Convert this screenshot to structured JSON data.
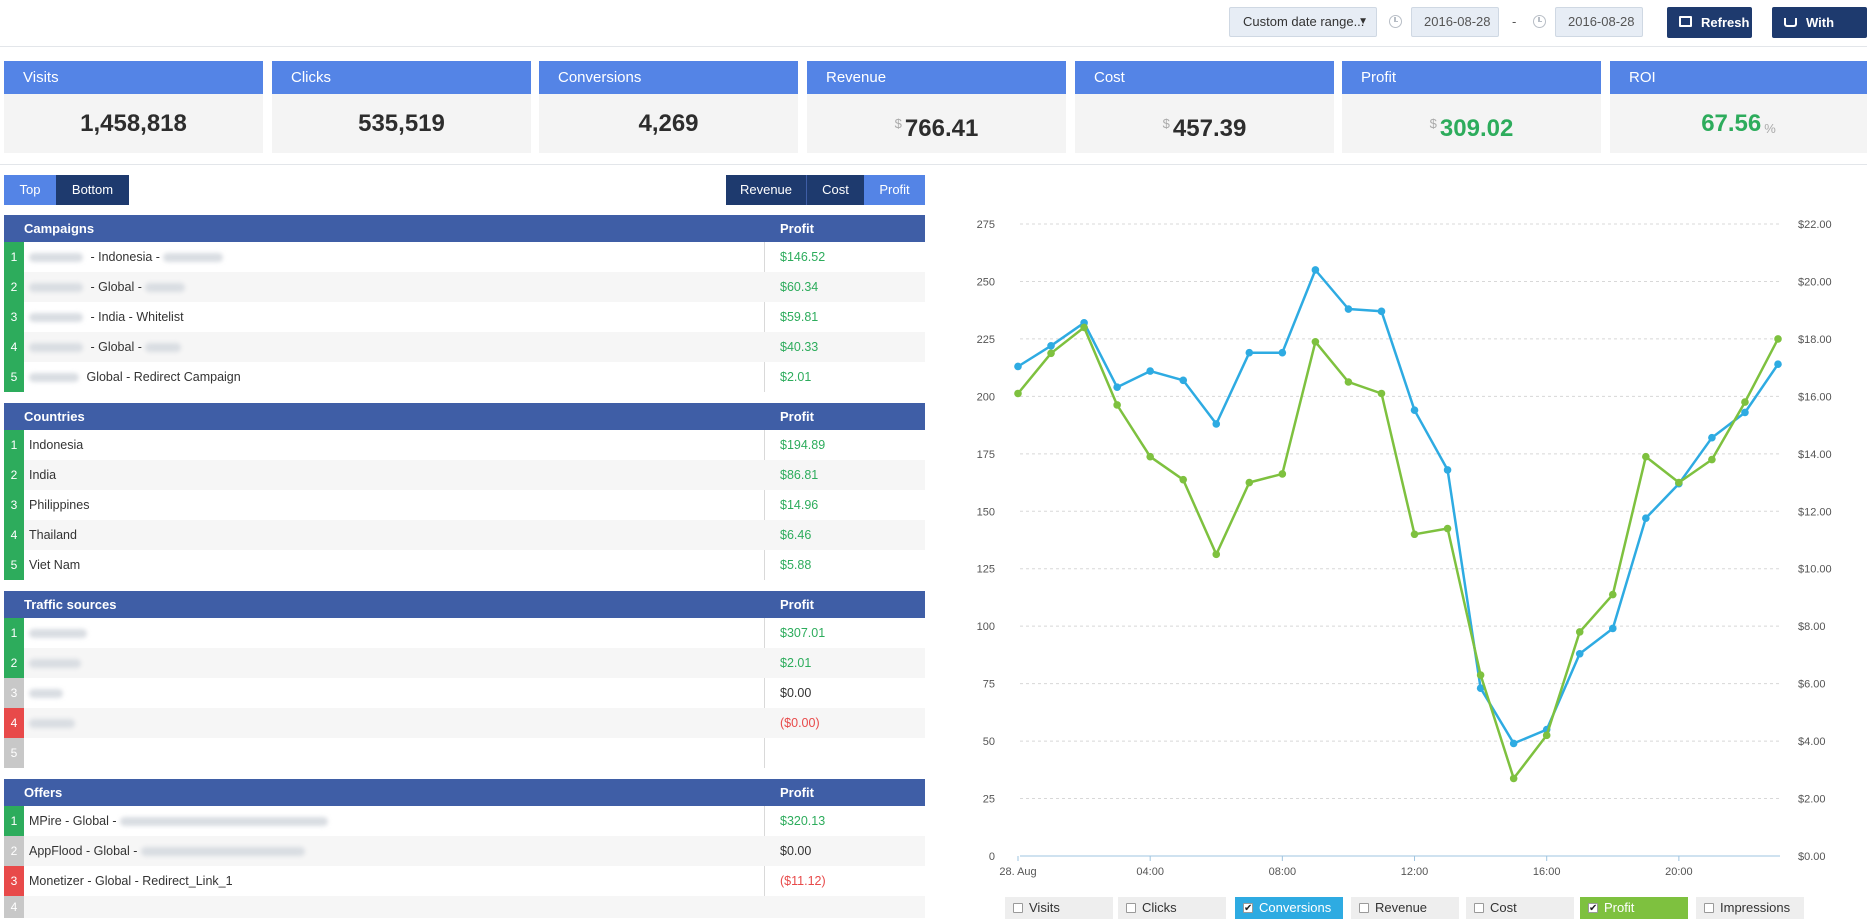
{
  "topbar": {
    "date_range_label": "Custom date range...",
    "date_from": "2016-08-28",
    "date_separator": "-",
    "date_to": "2016-08-28",
    "refresh_label": "Refresh",
    "traffic_label": "With traffic"
  },
  "kpis": [
    {
      "label": "Visits",
      "value": "1,458,818"
    },
    {
      "label": "Clicks",
      "value": "535,519"
    },
    {
      "label": "Conversions",
      "value": "4,269"
    },
    {
      "label": "Revenue",
      "currency": "$",
      "value": "766.41"
    },
    {
      "label": "Cost",
      "currency": "$",
      "value": "457.39"
    },
    {
      "label": "Profit",
      "currency": "$",
      "value": "309.02"
    },
    {
      "label": "ROI",
      "value": "67.56",
      "unit": "%"
    }
  ],
  "toggles": {
    "top": "Top",
    "bottom": "Bottom",
    "revenue": "Revenue",
    "cost": "Cost",
    "profit": "Profit"
  },
  "tables": {
    "campaigns": {
      "title": "Campaigns",
      "col": "Profit",
      "rows": [
        {
          "rank": "1",
          "name": " - Indonesia - ",
          "value": "$146.52"
        },
        {
          "rank": "2",
          "name": " - Global - ",
          "value": "$60.34"
        },
        {
          "rank": "3",
          "name": " - India - Whitelist",
          "value": "$59.81"
        },
        {
          "rank": "4",
          "name": " - Global - ",
          "value": "$40.33"
        },
        {
          "rank": "5",
          "name": " Global - Redirect Campaign",
          "value": "$2.01"
        }
      ]
    },
    "countries": {
      "title": "Countries",
      "col": "Profit",
      "rows": [
        {
          "rank": "1",
          "name": "Indonesia",
          "value": "$194.89"
        },
        {
          "rank": "2",
          "name": "India",
          "value": "$86.81"
        },
        {
          "rank": "3",
          "name": "Philippines",
          "value": "$14.96"
        },
        {
          "rank": "4",
          "name": "Thailand",
          "value": "$6.46"
        },
        {
          "rank": "5",
          "name": "Viet Nam",
          "value": "$5.88"
        }
      ]
    },
    "traffic_sources": {
      "title": "Traffic sources",
      "col": "Profit",
      "rows": [
        {
          "rank": "1",
          "name": "",
          "value": "$307.01"
        },
        {
          "rank": "2",
          "name": "",
          "value": "$2.01"
        },
        {
          "rank": "3",
          "name": "",
          "value": "$0.00"
        },
        {
          "rank": "4",
          "name": "",
          "value": "($0.00)"
        },
        {
          "rank": "5",
          "name": "",
          "value": ""
        }
      ]
    },
    "offers": {
      "title": "Offers",
      "col": "Profit",
      "rows": [
        {
          "rank": "1",
          "name": "MPire - Global - ",
          "value": "$320.13"
        },
        {
          "rank": "2",
          "name": "AppFlood - Global - ",
          "value": "$0.00"
        },
        {
          "rank": "3",
          "name": "Monetizer - Global - Redirect_Link_1",
          "value": "($11.12)"
        },
        {
          "rank": "4",
          "name": "",
          "value": ""
        }
      ]
    }
  },
  "colors": {
    "accent": "#5484e6",
    "navy": "#1e3a6e",
    "table_header": "#3f5ea6",
    "positive": "#2dac5c",
    "negative": "#e84a4a",
    "conversions": "#2eabe2",
    "profit": "#7ec13f"
  },
  "chart_data": {
    "type": "line",
    "x": [
      "28. Aug",
      "01:00",
      "02:00",
      "03:00",
      "04:00",
      "05:00",
      "06:00",
      "07:00",
      "08:00",
      "09:00",
      "10:00",
      "11:00",
      "12:00",
      "13:00",
      "14:00",
      "15:00",
      "16:00",
      "17:00",
      "18:00",
      "19:00",
      "20:00",
      "21:00",
      "22:00",
      "23:00"
    ],
    "x_tick_labels": [
      "28. Aug",
      "04:00",
      "08:00",
      "12:00",
      "16:00",
      "20:00"
    ],
    "series": [
      {
        "name": "Conversions",
        "axis": "left",
        "color": "#2eabe2",
        "values": [
          213,
          222,
          232,
          204,
          211,
          207,
          188,
          219,
          219,
          255,
          238,
          237,
          194,
          168,
          73,
          49,
          55,
          88,
          99,
          147,
          162,
          182,
          193,
          214
        ]
      },
      {
        "name": "Profit",
        "axis": "right",
        "color": "#7ec13f",
        "values": [
          16.1,
          17.5,
          18.4,
          15.7,
          13.9,
          13.1,
          10.5,
          13.0,
          13.3,
          17.9,
          16.5,
          16.1,
          11.2,
          11.4,
          6.3,
          2.7,
          4.2,
          7.8,
          9.1,
          13.9,
          13.0,
          13.8,
          15.8,
          18.0
        ]
      }
    ],
    "y_left": {
      "ylim": [
        0,
        275
      ],
      "ticks": [
        "0",
        "25",
        "50",
        "75",
        "100",
        "125",
        "150",
        "175",
        "200",
        "225",
        "250",
        "275"
      ]
    },
    "y_right": {
      "ylim": [
        0,
        22
      ],
      "ticks": [
        "$0.00",
        "$2.00",
        "$4.00",
        "$6.00",
        "$8.00",
        "$10.00",
        "$12.00",
        "$14.00",
        "$16.00",
        "$18.00",
        "$20.00",
        "$22.00"
      ]
    },
    "grid": true,
    "legend_placement": "bottom"
  },
  "legend": [
    {
      "label": "Visits",
      "checked": false
    },
    {
      "label": "Clicks",
      "checked": false
    },
    {
      "label": "Conversions",
      "checked": true
    },
    {
      "label": "Revenue",
      "checked": false
    },
    {
      "label": "Cost",
      "checked": false
    },
    {
      "label": "Profit",
      "checked": true
    },
    {
      "label": "Impressions",
      "checked": false
    }
  ]
}
